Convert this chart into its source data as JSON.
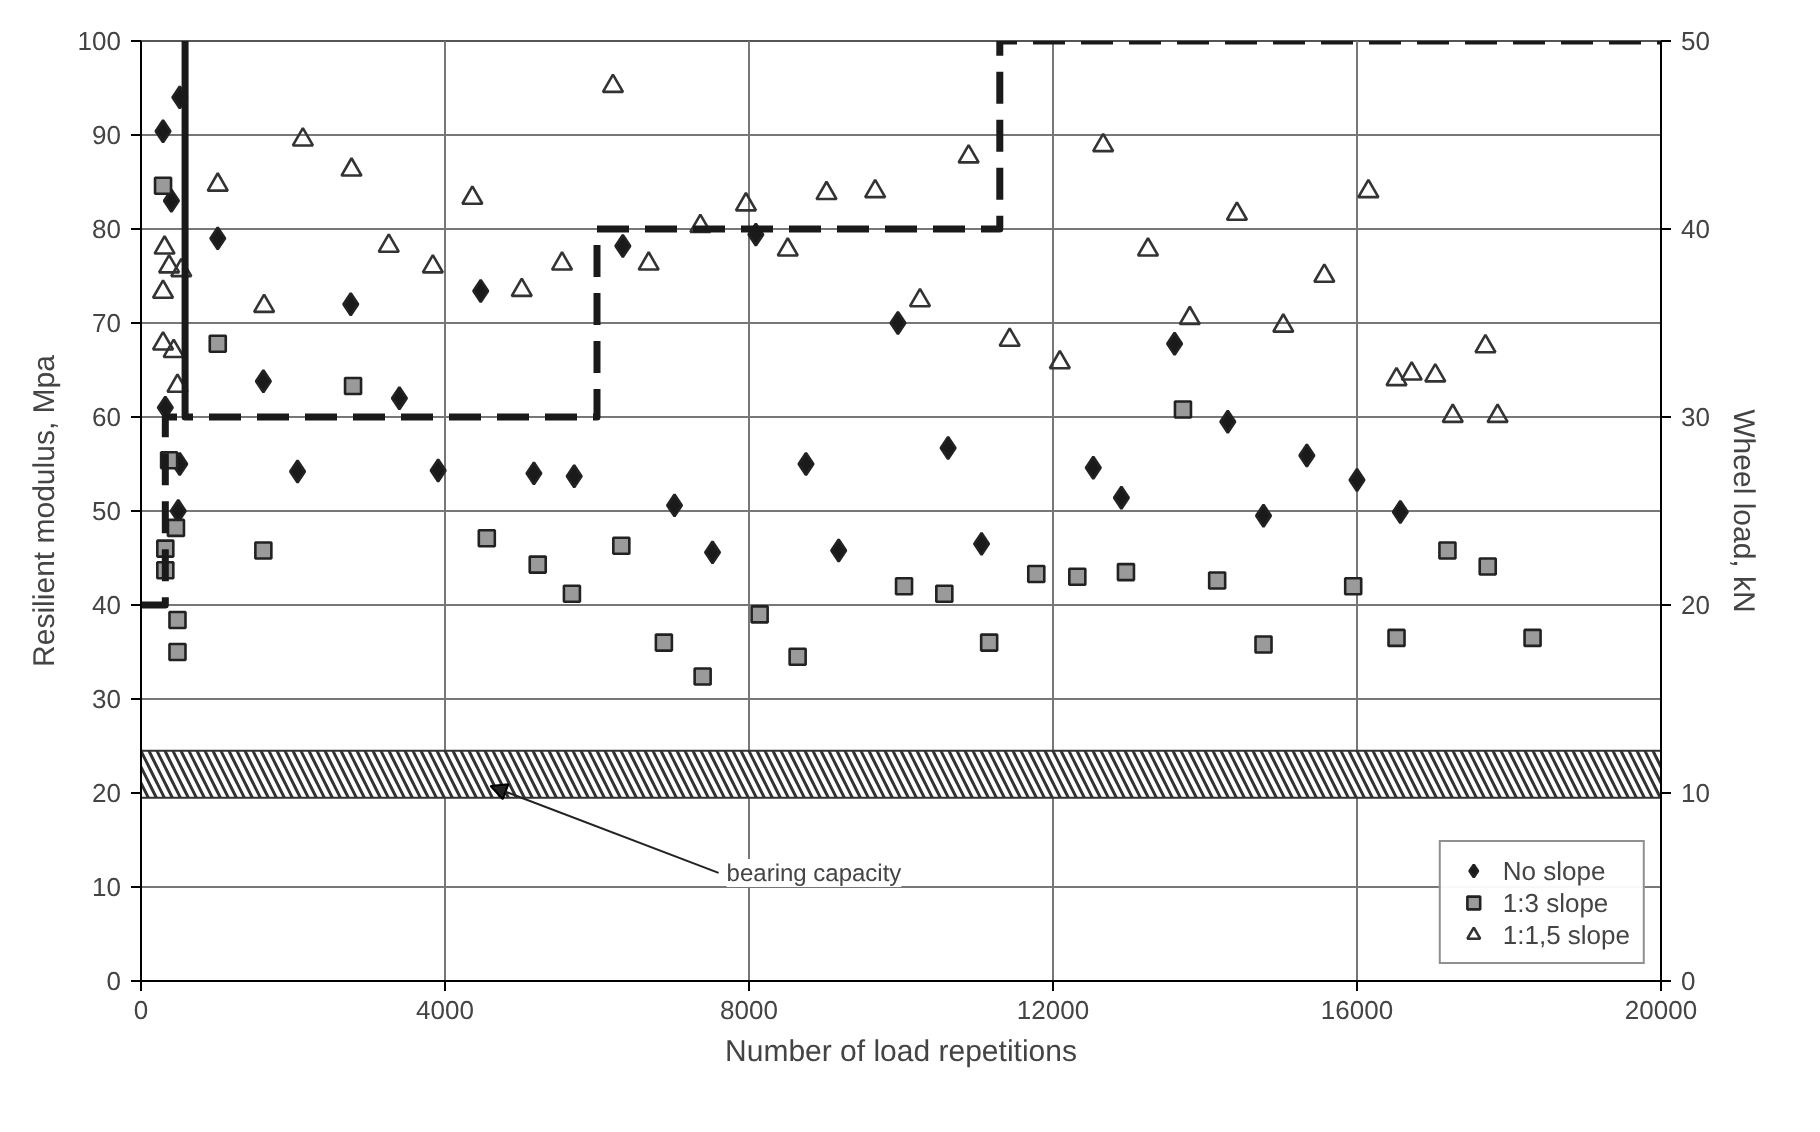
{
  "chart_data": {
    "type": "scatter",
    "xlabel": "Number of load repetitions",
    "ylabel": "Resilient modulus, Mpa",
    "y2label": "Wheel load, kN",
    "xlim": [
      0,
      20000
    ],
    "ylim": [
      0,
      100
    ],
    "y2lim": [
      0,
      50
    ],
    "xticks": [
      0,
      4000,
      8000,
      12000,
      16000,
      20000
    ],
    "yticks": [
      0,
      10,
      20,
      30,
      40,
      50,
      60,
      70,
      80,
      90,
      100
    ],
    "y2ticks": [
      0,
      10,
      20,
      30,
      40,
      50
    ],
    "grid": true,
    "legend": "bottom right",
    "series": [
      {
        "name": "No slope",
        "color": "#1a1a1a",
        "marker": "diamond",
        "x": [
          290,
          400,
          510,
          320,
          510,
          490,
          1010,
          1610,
          2060,
          2760,
          3400,
          3910,
          4470,
          5170,
          5700,
          6340,
          7020,
          7520,
          8090,
          8750,
          9180,
          9960,
          10620,
          11060,
          12530,
          12900,
          13600,
          14300,
          14770,
          15340,
          16000,
          16570
        ],
        "values": [
          90.4,
          83,
          94,
          61,
          55,
          50,
          79,
          63.8,
          54.2,
          72,
          62,
          54.3,
          73.4,
          54,
          53.7,
          78.2,
          50.6,
          45.6,
          79.4,
          55,
          45.8,
          70,
          56.7,
          46.5,
          54.6,
          51.4,
          67.8,
          59.5,
          49.5,
          55.9,
          53.3,
          49.9
        ]
      },
      {
        "name": "1:3 slope",
        "color": "#9a9a9a",
        "marker": "square",
        "x": [
          290,
          320,
          320,
          370,
          460,
          480,
          480,
          1010,
          1610,
          2790,
          4550,
          5220,
          5670,
          6320,
          6880,
          7390,
          8140,
          8640,
          10040,
          10570,
          11160,
          11780,
          12320,
          12960,
          13710,
          14160,
          14770,
          15950,
          16520,
          17190,
          17720,
          18310
        ],
        "values": [
          84.6,
          46,
          43.7,
          55.4,
          48.2,
          38.4,
          35,
          67.8,
          45.8,
          63.3,
          47.1,
          44.3,
          41.2,
          46.3,
          36,
          32.4,
          39,
          34.5,
          42,
          41.2,
          36,
          43.3,
          43,
          43.5,
          60.8,
          42.6,
          35.8,
          42,
          36.5,
          45.8,
          44.1,
          36.5
        ]
      },
      {
        "name": "1:1,5 slope",
        "color": "#333333",
        "marker": "triangle",
        "x": [
          310,
          290,
          290,
          430,
          370,
          530,
          480,
          1010,
          1620,
          2130,
          2770,
          3260,
          3840,
          4360,
          5010,
          5540,
          6210,
          6680,
          7360,
          7960,
          8510,
          9020,
          9660,
          10250,
          10890,
          11430,
          12090,
          12660,
          13250,
          13800,
          14420,
          15030,
          15570,
          16150,
          16520,
          16720,
          17030,
          17260,
          17690,
          17850
        ],
        "values": [
          78,
          73.3,
          67.8,
          67,
          76,
          75.6,
          63.3,
          84.7,
          71.8,
          89.5,
          86.3,
          78.2,
          76,
          83.3,
          73.5,
          76.3,
          95.2,
          76.3,
          80.3,
          82.6,
          77.8,
          83.8,
          84,
          72.4,
          87.7,
          68.2,
          65.8,
          88.9,
          77.8,
          70.5,
          81.6,
          69.7,
          75,
          84,
          64,
          64.6,
          64.4,
          60.1,
          67.5,
          60.1
        ]
      },
      {
        "type": "line",
        "axis": "y2",
        "color": "#1a1a1a",
        "line_style": "dashed",
        "marker": "none",
        "x": [
          0,
          320,
          320,
          580,
          580,
          580,
          6000,
          6000,
          11300,
          11300,
          20000
        ],
        "values": [
          20,
          20,
          30,
          30,
          50,
          30,
          30,
          40,
          40,
          50,
          50
        ]
      }
    ],
    "bands": [
      {
        "axis": "y",
        "from": 19.5,
        "to": 24.5,
        "label": "bearing capacity",
        "color": "#333333"
      }
    ]
  }
}
